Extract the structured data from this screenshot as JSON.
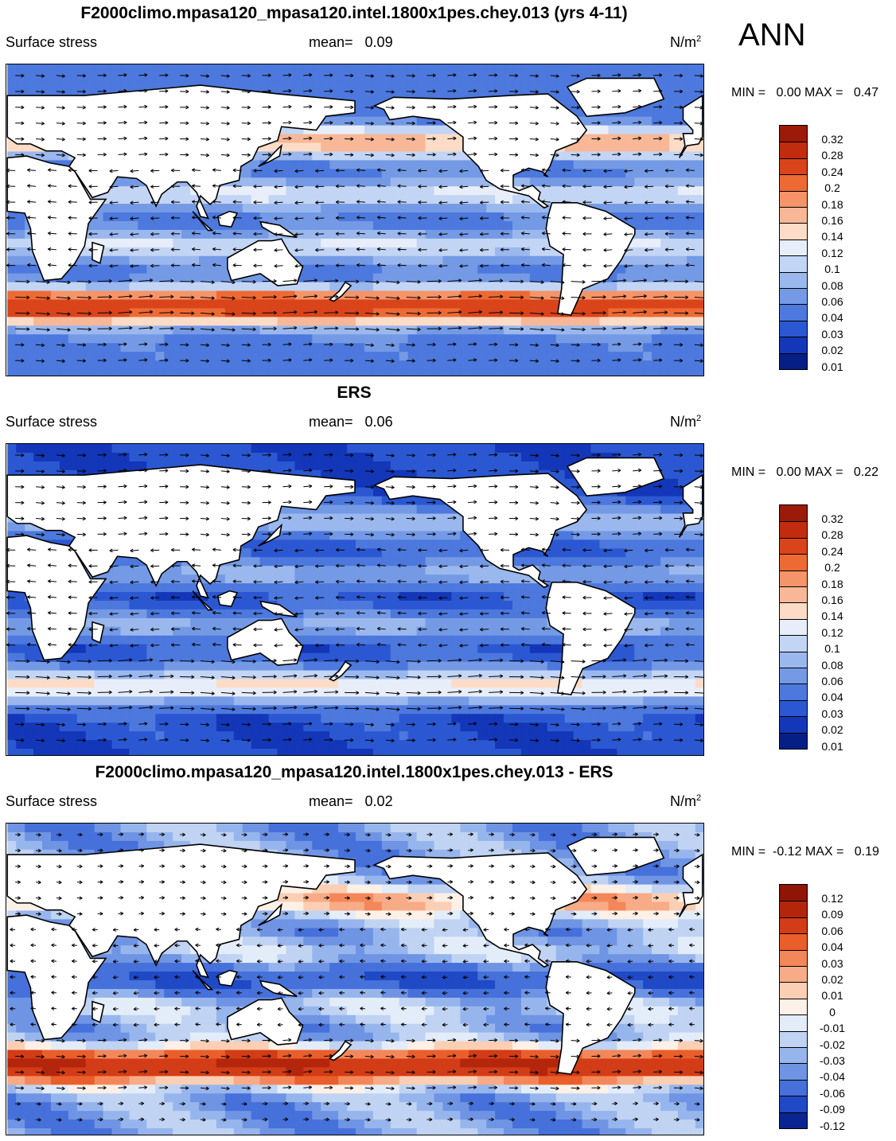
{
  "season_label": "ANN",
  "panels": [
    {
      "title": "F2000climo.mpasa120_mpasa120.intel.1800x1pes.chey.013 (yrs 4-11)",
      "variable": "Surface stress",
      "mean_text": "mean=   0.09",
      "units": "N/m",
      "units_sup": "2",
      "minmax_text": "MIN =   0.00 MAX =   0.47",
      "colorbar_labels": [
        "0.32",
        "0.28",
        "0.24",
        "0.2",
        "0.18",
        "0.16",
        "0.14",
        "0.12",
        "0.1",
        "0.08",
        "0.06",
        "0.04",
        "0.03",
        "0.02",
        "0.01"
      ],
      "colorbar_colors": [
        "#9c1a08",
        "#c12c0e",
        "#d9441a",
        "#ee6a34",
        "#f59468",
        "#f8b796",
        "#fcdcc6",
        "#e8eef9",
        "#c3d5f4",
        "#9ab8ee",
        "#749ae6",
        "#4d78dd",
        "#2b58d2",
        "#1337b8",
        "#061f86"
      ]
    },
    {
      "title": "ERS",
      "variable": "Surface stress",
      "mean_text": "mean=   0.06",
      "units": "N/m",
      "units_sup": "2",
      "minmax_text": "MIN =   0.00 MAX =   0.22",
      "colorbar_labels": [
        "0.32",
        "0.28",
        "0.24",
        "0.2",
        "0.18",
        "0.16",
        "0.14",
        "0.12",
        "0.1",
        "0.08",
        "0.06",
        "0.04",
        "0.03",
        "0.02",
        "0.01"
      ],
      "colorbar_colors": [
        "#9c1a08",
        "#c12c0e",
        "#d9441a",
        "#ee6a34",
        "#f59468",
        "#f8b796",
        "#fcdcc6",
        "#e8eef9",
        "#c3d5f4",
        "#9ab8ee",
        "#749ae6",
        "#4d78dd",
        "#2b58d2",
        "#1337b8",
        "#061f86"
      ]
    },
    {
      "title": "F2000climo.mpasa120_mpasa120.intel.1800x1pes.chey.013 - ERS",
      "variable": "Surface stress",
      "mean_text": "mean=   0.02",
      "units": "N/m",
      "units_sup": "2",
      "minmax_text": "MIN =  -0.12 MAX =   0.19",
      "colorbar_labels": [
        "0.12",
        "0.09",
        "0.06",
        "0.04",
        "0.03",
        "0.02",
        "0.01",
        "0",
        "-0.01",
        "-0.02",
        "-0.03",
        "-0.04",
        "-0.06",
        "-0.09",
        "-0.12"
      ],
      "colorbar_colors": [
        "#8f1506",
        "#b4260c",
        "#d23c16",
        "#ea5e2c",
        "#f4875a",
        "#f7ab86",
        "#fbcfb4",
        "#fdf0e6",
        "#e3ecf9",
        "#c0d3f3",
        "#97b5ed",
        "#6f94e4",
        "#4670da",
        "#2049c6",
        "#0a2590"
      ]
    }
  ]
}
